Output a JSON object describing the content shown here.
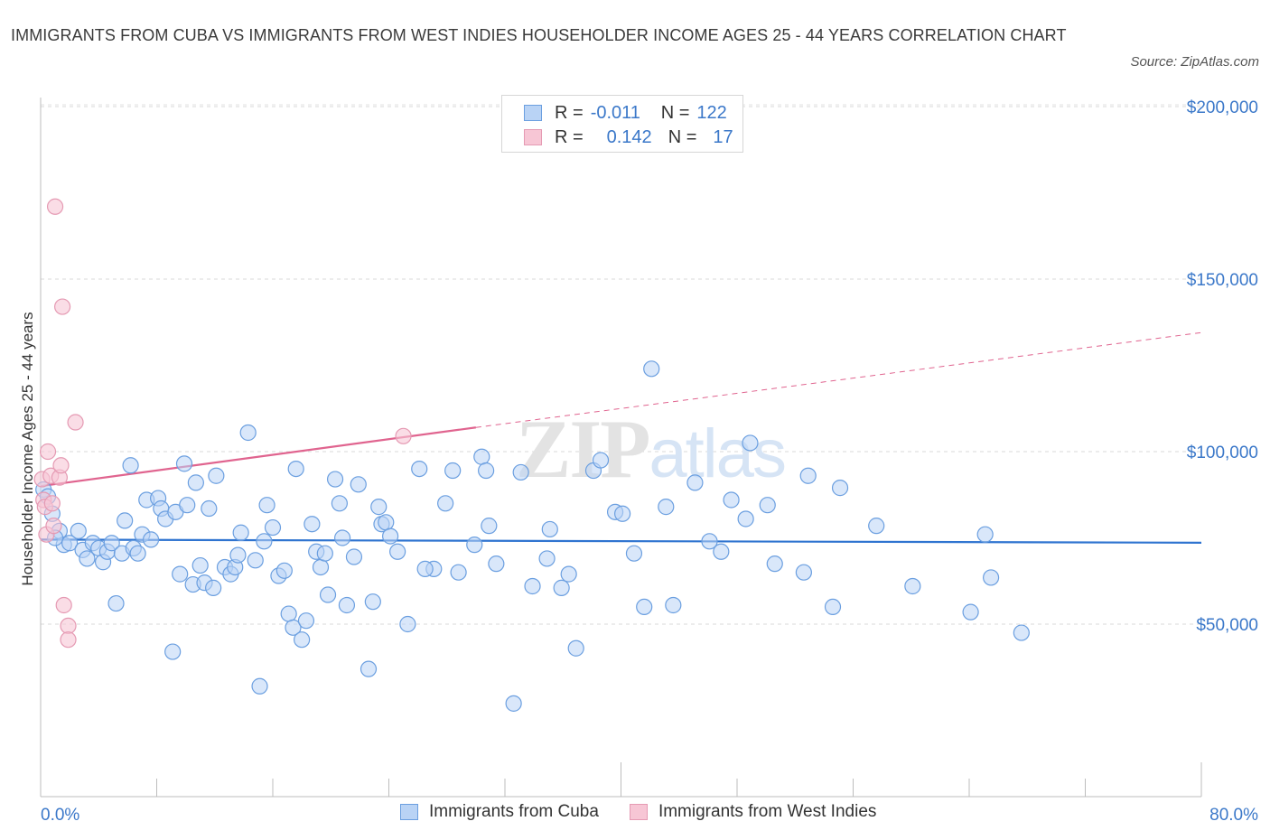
{
  "title": "IMMIGRANTS FROM CUBA VS IMMIGRANTS FROM WEST INDIES HOUSEHOLDER INCOME AGES 25 - 44 YEARS CORRELATION CHART",
  "source": "Source: ZipAtlas.com",
  "watermark": "ZIPatlas",
  "legend_stats": [
    {
      "r_label": "R =",
      "r_value": "-0.011",
      "n_label": "N =",
      "n_value": "122",
      "color": "#b9d3f5"
    },
    {
      "r_label": "R =",
      "r_value": "0.142",
      "n_label": "N =",
      "n_value": "17",
      "color": "#f7c6d5"
    }
  ],
  "colors": {
    "cuba": "#6b9fe0",
    "cuba_fill": "#b9d3f5",
    "cuba_line": "#2f74d0",
    "west_indies": "#e59ab3",
    "west_indies_fill": "#f7c6d5",
    "west_indies_line": "#e0648f",
    "tick_text": "#3b78c9"
  },
  "chart_data": {
    "type": "scatter",
    "title": "IMMIGRANTS FROM CUBA VS IMMIGRANTS FROM WEST INDIES HOUSEHOLDER INCOME AGES 25 - 44 YEARS CORRELATION CHART",
    "xlabel": "",
    "ylabel": "Householder Income Ages 25 - 44 years",
    "xlim": [
      0,
      80
    ],
    "ylim": [
      20000,
      215000
    ],
    "x_tick_labels": [
      "0.0%",
      "80.0%"
    ],
    "y_ticks": [
      50000,
      100000,
      150000,
      200000
    ],
    "y_tick_labels": [
      "$50,000",
      "$100,000",
      "$150,000",
      "$200,000"
    ],
    "grid": true,
    "legend_position": "bottom",
    "series": [
      {
        "name": "Immigrants from Cuba",
        "trend": {
          "x": [
            0,
            80
          ],
          "y": [
            74500,
            73600
          ]
        },
        "points": [
          [
            0.2,
            89000
          ],
          [
            0.5,
            87000
          ],
          [
            0.8,
            82000
          ],
          [
            1.3,
            77000
          ],
          [
            1.6,
            73000
          ],
          [
            2.0,
            73500
          ],
          [
            2.6,
            77000
          ],
          [
            2.9,
            71500
          ],
          [
            3.2,
            69000
          ],
          [
            3.6,
            73500
          ],
          [
            4.0,
            72000
          ],
          [
            4.3,
            68000
          ],
          [
            4.6,
            71000
          ],
          [
            4.9,
            73500
          ],
          [
            5.2,
            56000
          ],
          [
            5.6,
            70500
          ],
          [
            5.8,
            80000
          ],
          [
            6.2,
            96000
          ],
          [
            6.4,
            72000
          ],
          [
            6.7,
            70500
          ],
          [
            7.0,
            76000
          ],
          [
            7.3,
            86000
          ],
          [
            7.6,
            74500
          ],
          [
            8.1,
            86500
          ],
          [
            8.3,
            83500
          ],
          [
            8.6,
            80500
          ],
          [
            9.1,
            42000
          ],
          [
            9.3,
            82500
          ],
          [
            9.6,
            64500
          ],
          [
            9.9,
            96500
          ],
          [
            10.1,
            84500
          ],
          [
            10.5,
            61500
          ],
          [
            10.7,
            91000
          ],
          [
            11.0,
            67000
          ],
          [
            11.3,
            62000
          ],
          [
            11.6,
            83500
          ],
          [
            11.9,
            60500
          ],
          [
            12.1,
            93000
          ],
          [
            12.7,
            66500
          ],
          [
            13.1,
            64500
          ],
          [
            13.4,
            66500
          ],
          [
            13.6,
            70000
          ],
          [
            13.8,
            76500
          ],
          [
            14.3,
            105500
          ],
          [
            14.8,
            68500
          ],
          [
            15.1,
            32000
          ],
          [
            15.4,
            74000
          ],
          [
            15.6,
            84500
          ],
          [
            16.0,
            78000
          ],
          [
            16.4,
            64000
          ],
          [
            16.8,
            65500
          ],
          [
            17.1,
            53000
          ],
          [
            17.4,
            49000
          ],
          [
            17.6,
            95000
          ],
          [
            18.0,
            45500
          ],
          [
            18.3,
            51000
          ],
          [
            18.7,
            79000
          ],
          [
            19.0,
            71000
          ],
          [
            19.3,
            66500
          ],
          [
            19.6,
            70500
          ],
          [
            19.8,
            58500
          ],
          [
            20.3,
            92000
          ],
          [
            20.6,
            85000
          ],
          [
            20.8,
            75000
          ],
          [
            21.1,
            55500
          ],
          [
            21.6,
            69500
          ],
          [
            21.9,
            90500
          ],
          [
            22.6,
            37000
          ],
          [
            22.9,
            56500
          ],
          [
            23.3,
            84000
          ],
          [
            23.5,
            79000
          ],
          [
            23.8,
            79500
          ],
          [
            24.1,
            75500
          ],
          [
            24.6,
            71000
          ],
          [
            25.3,
            50000
          ],
          [
            26.1,
            95000
          ],
          [
            27.1,
            66000
          ],
          [
            27.9,
            85000
          ],
          [
            28.4,
            94500
          ],
          [
            28.8,
            65000
          ],
          [
            29.9,
            73000
          ],
          [
            30.4,
            98500
          ],
          [
            30.7,
            94500
          ],
          [
            30.9,
            78500
          ],
          [
            31.4,
            67500
          ],
          [
            32.6,
            27000
          ],
          [
            33.1,
            94000
          ],
          [
            33.9,
            61000
          ],
          [
            34.9,
            69000
          ],
          [
            35.1,
            77500
          ],
          [
            35.9,
            60500
          ],
          [
            36.4,
            64500
          ],
          [
            36.9,
            43000
          ],
          [
            38.1,
            94500
          ],
          [
            38.6,
            97500
          ],
          [
            39.6,
            82500
          ],
          [
            40.1,
            82000
          ],
          [
            40.9,
            70500
          ],
          [
            41.6,
            55000
          ],
          [
            42.1,
            124000
          ],
          [
            43.1,
            84000
          ],
          [
            43.6,
            55500
          ],
          [
            45.1,
            91000
          ],
          [
            46.1,
            74000
          ],
          [
            46.9,
            71000
          ],
          [
            47.6,
            86000
          ],
          [
            48.6,
            80500
          ],
          [
            48.9,
            102500
          ],
          [
            50.1,
            84500
          ],
          [
            50.6,
            67500
          ],
          [
            52.6,
            65000
          ],
          [
            52.9,
            93000
          ],
          [
            54.6,
            55000
          ],
          [
            55.1,
            89500
          ],
          [
            57.6,
            78500
          ],
          [
            60.1,
            61000
          ],
          [
            64.1,
            53500
          ],
          [
            65.1,
            76000
          ],
          [
            67.6,
            47500
          ],
          [
            65.5,
            63500
          ],
          [
            26.5,
            66000
          ],
          [
            1.0,
            75000
          ]
        ]
      },
      {
        "name": "Immigrants from West Indies",
        "trend": {
          "x": [
            0,
            30
          ],
          "y": [
            90000,
            107000
          ],
          "dashed_to": {
            "x": 80,
            "y": 134500
          }
        },
        "points": [
          [
            0.1,
            92000
          ],
          [
            0.2,
            86000
          ],
          [
            0.3,
            84000
          ],
          [
            0.4,
            76000
          ],
          [
            0.5,
            100000
          ],
          [
            0.7,
            93000
          ],
          [
            0.8,
            85000
          ],
          [
            0.9,
            78500
          ],
          [
            1.0,
            171000
          ],
          [
            1.3,
            92500
          ],
          [
            1.4,
            96000
          ],
          [
            1.5,
            142000
          ],
          [
            1.6,
            55500
          ],
          [
            1.9,
            49500
          ],
          [
            1.9,
            45500
          ],
          [
            2.4,
            108500
          ],
          [
            25.0,
            104500
          ]
        ]
      }
    ]
  }
}
